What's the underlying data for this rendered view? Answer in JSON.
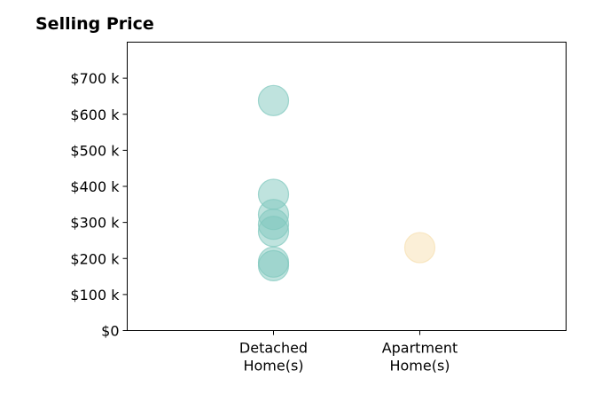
{
  "chart_data": {
    "type": "scatter",
    "title": "Selling Price",
    "categories": [
      "Detached Home(s)",
      "Apartment Home(s)"
    ],
    "category_lines": [
      [
        "Detached",
        "Home(s)"
      ],
      [
        "Apartment",
        "Home(s)"
      ]
    ],
    "y_ticks": [
      0,
      100,
      200,
      300,
      400,
      500,
      600,
      700
    ],
    "y_tick_labels": [
      "$0",
      "$100 k",
      "$200 k",
      "$300 k",
      "$400 k",
      "$500 k",
      "$600 k",
      "$700 k"
    ],
    "ylim": [
      0,
      800
    ],
    "xlim": [
      0,
      3
    ],
    "grid": false,
    "series": [
      {
        "category": "Detached Home(s)",
        "x": 1,
        "color": "#7fc8bd",
        "values": [
          638,
          378,
          322,
          295,
          275,
          190,
          180
        ]
      },
      {
        "category": "Apartment Home(s)",
        "x": 2,
        "color": "#f7dfb0",
        "values": [
          230
        ]
      }
    ]
  }
}
